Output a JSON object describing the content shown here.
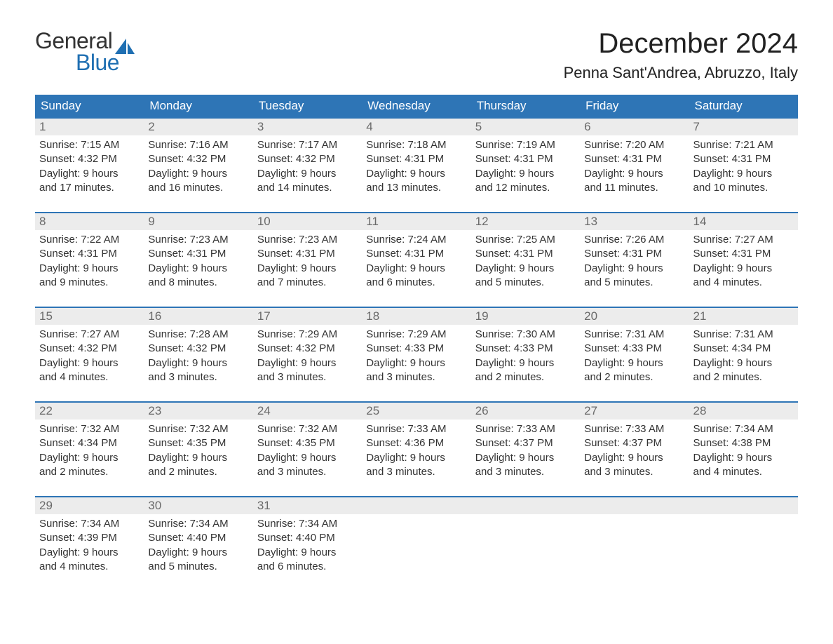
{
  "logo": {
    "text_general": "General",
    "text_blue": "Blue",
    "sail_color": "#1f6fb2",
    "general_color": "#333333",
    "blue_color": "#1f6fb2"
  },
  "header": {
    "month_title": "December 2024",
    "location": "Penna Sant'Andrea, Abruzzo, Italy",
    "title_color": "#222222",
    "title_fontsize": 40,
    "location_fontsize": 22
  },
  "calendar": {
    "type": "table",
    "header_bg": "#2e75b6",
    "header_text_color": "#ffffff",
    "day_number_bg": "#ececec",
    "day_number_color": "#6a6a6a",
    "body_text_color": "#333333",
    "row_border_color": "#2e75b6",
    "background_color": "#ffffff",
    "weekdays": [
      "Sunday",
      "Monday",
      "Tuesday",
      "Wednesday",
      "Thursday",
      "Friday",
      "Saturday"
    ],
    "weeks": [
      [
        {
          "n": "1",
          "sunrise": "Sunrise: 7:15 AM",
          "sunset": "Sunset: 4:32 PM",
          "d1": "Daylight: 9 hours",
          "d2": "and 17 minutes."
        },
        {
          "n": "2",
          "sunrise": "Sunrise: 7:16 AM",
          "sunset": "Sunset: 4:32 PM",
          "d1": "Daylight: 9 hours",
          "d2": "and 16 minutes."
        },
        {
          "n": "3",
          "sunrise": "Sunrise: 7:17 AM",
          "sunset": "Sunset: 4:32 PM",
          "d1": "Daylight: 9 hours",
          "d2": "and 14 minutes."
        },
        {
          "n": "4",
          "sunrise": "Sunrise: 7:18 AM",
          "sunset": "Sunset: 4:31 PM",
          "d1": "Daylight: 9 hours",
          "d2": "and 13 minutes."
        },
        {
          "n": "5",
          "sunrise": "Sunrise: 7:19 AM",
          "sunset": "Sunset: 4:31 PM",
          "d1": "Daylight: 9 hours",
          "d2": "and 12 minutes."
        },
        {
          "n": "6",
          "sunrise": "Sunrise: 7:20 AM",
          "sunset": "Sunset: 4:31 PM",
          "d1": "Daylight: 9 hours",
          "d2": "and 11 minutes."
        },
        {
          "n": "7",
          "sunrise": "Sunrise: 7:21 AM",
          "sunset": "Sunset: 4:31 PM",
          "d1": "Daylight: 9 hours",
          "d2": "and 10 minutes."
        }
      ],
      [
        {
          "n": "8",
          "sunrise": "Sunrise: 7:22 AM",
          "sunset": "Sunset: 4:31 PM",
          "d1": "Daylight: 9 hours",
          "d2": "and 9 minutes."
        },
        {
          "n": "9",
          "sunrise": "Sunrise: 7:23 AM",
          "sunset": "Sunset: 4:31 PM",
          "d1": "Daylight: 9 hours",
          "d2": "and 8 minutes."
        },
        {
          "n": "10",
          "sunrise": "Sunrise: 7:23 AM",
          "sunset": "Sunset: 4:31 PM",
          "d1": "Daylight: 9 hours",
          "d2": "and 7 minutes."
        },
        {
          "n": "11",
          "sunrise": "Sunrise: 7:24 AM",
          "sunset": "Sunset: 4:31 PM",
          "d1": "Daylight: 9 hours",
          "d2": "and 6 minutes."
        },
        {
          "n": "12",
          "sunrise": "Sunrise: 7:25 AM",
          "sunset": "Sunset: 4:31 PM",
          "d1": "Daylight: 9 hours",
          "d2": "and 5 minutes."
        },
        {
          "n": "13",
          "sunrise": "Sunrise: 7:26 AM",
          "sunset": "Sunset: 4:31 PM",
          "d1": "Daylight: 9 hours",
          "d2": "and 5 minutes."
        },
        {
          "n": "14",
          "sunrise": "Sunrise: 7:27 AM",
          "sunset": "Sunset: 4:31 PM",
          "d1": "Daylight: 9 hours",
          "d2": "and 4 minutes."
        }
      ],
      [
        {
          "n": "15",
          "sunrise": "Sunrise: 7:27 AM",
          "sunset": "Sunset: 4:32 PM",
          "d1": "Daylight: 9 hours",
          "d2": "and 4 minutes."
        },
        {
          "n": "16",
          "sunrise": "Sunrise: 7:28 AM",
          "sunset": "Sunset: 4:32 PM",
          "d1": "Daylight: 9 hours",
          "d2": "and 3 minutes."
        },
        {
          "n": "17",
          "sunrise": "Sunrise: 7:29 AM",
          "sunset": "Sunset: 4:32 PM",
          "d1": "Daylight: 9 hours",
          "d2": "and 3 minutes."
        },
        {
          "n": "18",
          "sunrise": "Sunrise: 7:29 AM",
          "sunset": "Sunset: 4:33 PM",
          "d1": "Daylight: 9 hours",
          "d2": "and 3 minutes."
        },
        {
          "n": "19",
          "sunrise": "Sunrise: 7:30 AM",
          "sunset": "Sunset: 4:33 PM",
          "d1": "Daylight: 9 hours",
          "d2": "and 2 minutes."
        },
        {
          "n": "20",
          "sunrise": "Sunrise: 7:31 AM",
          "sunset": "Sunset: 4:33 PM",
          "d1": "Daylight: 9 hours",
          "d2": "and 2 minutes."
        },
        {
          "n": "21",
          "sunrise": "Sunrise: 7:31 AM",
          "sunset": "Sunset: 4:34 PM",
          "d1": "Daylight: 9 hours",
          "d2": "and 2 minutes."
        }
      ],
      [
        {
          "n": "22",
          "sunrise": "Sunrise: 7:32 AM",
          "sunset": "Sunset: 4:34 PM",
          "d1": "Daylight: 9 hours",
          "d2": "and 2 minutes."
        },
        {
          "n": "23",
          "sunrise": "Sunrise: 7:32 AM",
          "sunset": "Sunset: 4:35 PM",
          "d1": "Daylight: 9 hours",
          "d2": "and 2 minutes."
        },
        {
          "n": "24",
          "sunrise": "Sunrise: 7:32 AM",
          "sunset": "Sunset: 4:35 PM",
          "d1": "Daylight: 9 hours",
          "d2": "and 3 minutes."
        },
        {
          "n": "25",
          "sunrise": "Sunrise: 7:33 AM",
          "sunset": "Sunset: 4:36 PM",
          "d1": "Daylight: 9 hours",
          "d2": "and 3 minutes."
        },
        {
          "n": "26",
          "sunrise": "Sunrise: 7:33 AM",
          "sunset": "Sunset: 4:37 PM",
          "d1": "Daylight: 9 hours",
          "d2": "and 3 minutes."
        },
        {
          "n": "27",
          "sunrise": "Sunrise: 7:33 AM",
          "sunset": "Sunset: 4:37 PM",
          "d1": "Daylight: 9 hours",
          "d2": "and 3 minutes."
        },
        {
          "n": "28",
          "sunrise": "Sunrise: 7:34 AM",
          "sunset": "Sunset: 4:38 PM",
          "d1": "Daylight: 9 hours",
          "d2": "and 4 minutes."
        }
      ],
      [
        {
          "n": "29",
          "sunrise": "Sunrise: 7:34 AM",
          "sunset": "Sunset: 4:39 PM",
          "d1": "Daylight: 9 hours",
          "d2": "and 4 minutes."
        },
        {
          "n": "30",
          "sunrise": "Sunrise: 7:34 AM",
          "sunset": "Sunset: 4:40 PM",
          "d1": "Daylight: 9 hours",
          "d2": "and 5 minutes."
        },
        {
          "n": "31",
          "sunrise": "Sunrise: 7:34 AM",
          "sunset": "Sunset: 4:40 PM",
          "d1": "Daylight: 9 hours",
          "d2": "and 6 minutes."
        },
        {
          "empty": true
        },
        {
          "empty": true
        },
        {
          "empty": true
        },
        {
          "empty": true
        }
      ]
    ]
  }
}
